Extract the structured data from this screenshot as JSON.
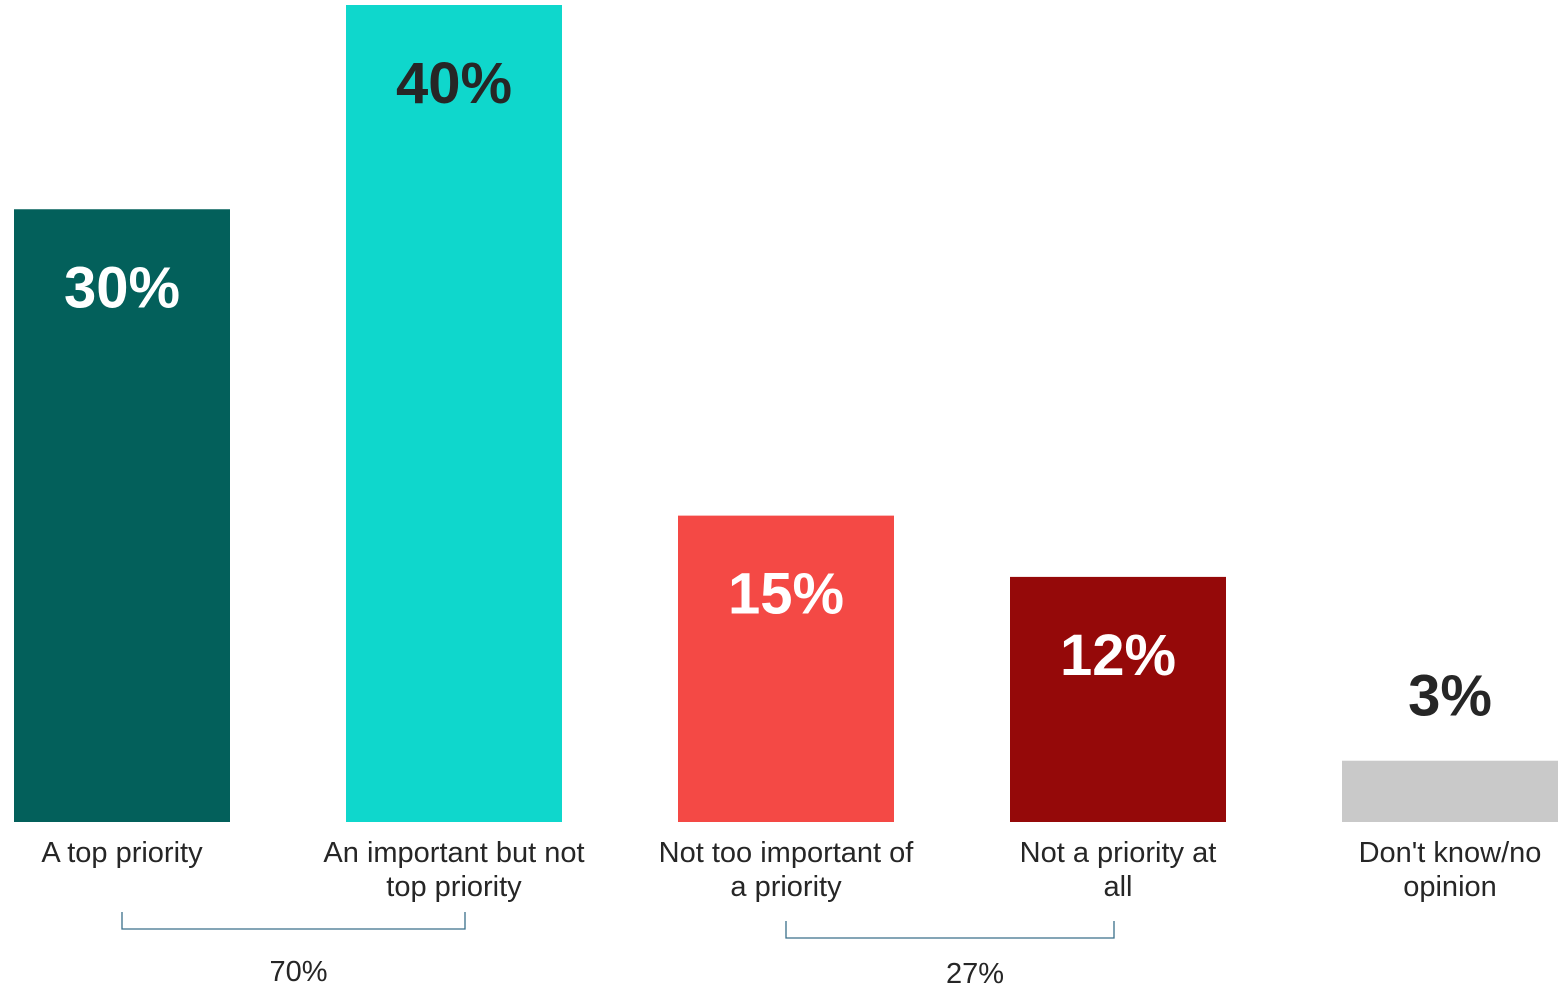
{
  "chart_data": {
    "type": "bar",
    "title": "",
    "xlabel": "",
    "ylabel": "",
    "ylim": [
      0,
      40
    ],
    "grid": false,
    "categories": [
      [
        "A top priority"
      ],
      [
        "An important but not",
        "top priority"
      ],
      [
        "Not too important of",
        "a priority"
      ],
      [
        "Not a priority at",
        "all"
      ],
      [
        "Don't know/no",
        "opinion"
      ]
    ],
    "values": [
      30,
      40,
      15,
      12,
      3
    ],
    "value_labels": [
      "30%",
      "40%",
      "15%",
      "12%",
      "3%"
    ],
    "colors": [
      "#03605b",
      "#0fd7cc",
      "#f44945",
      "#950909",
      "#c9c9c9"
    ],
    "value_label_colors": [
      "#ffffff",
      "#262626",
      "#ffffff",
      "#ffffff",
      "#262626"
    ],
    "groups": [
      {
        "label": "70%",
        "from_index": 0,
        "to_index": 1
      },
      {
        "label": "27%",
        "from_index": 2,
        "to_index": 3
      }
    ],
    "bracket_color": "#3a6f8a"
  }
}
